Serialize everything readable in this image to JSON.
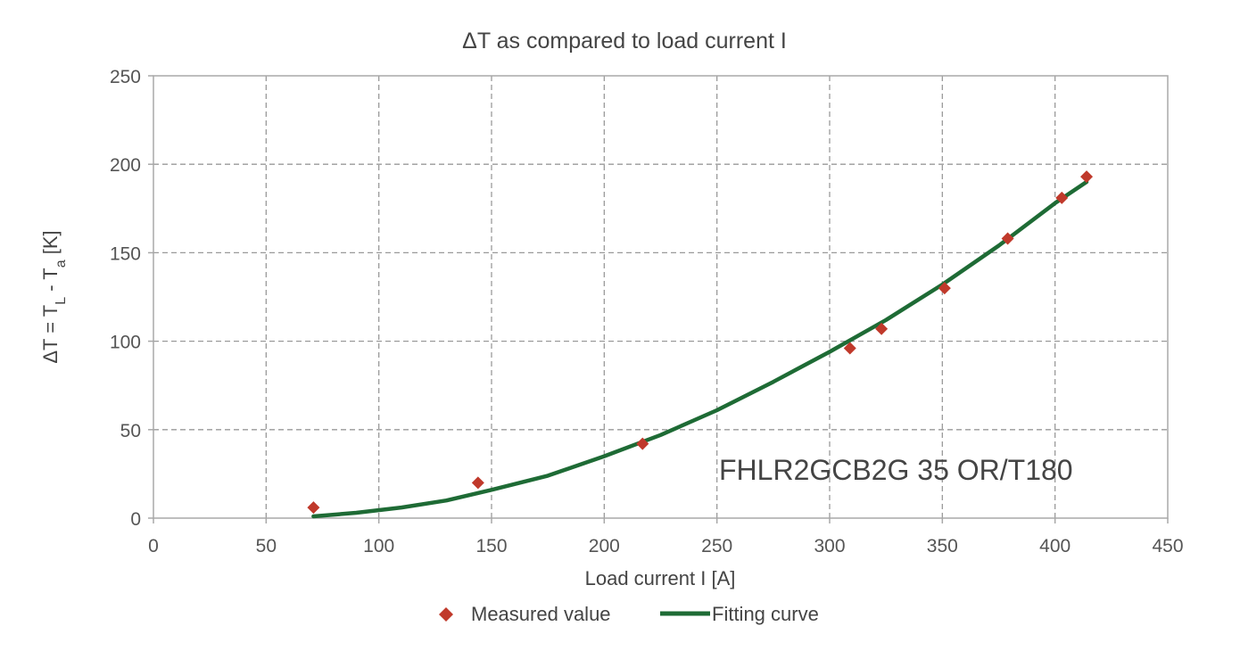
{
  "chart_data": {
    "type": "scatter",
    "title": "ΔT as compared to load current I",
    "xlabel": "Load current I [A]",
    "ylabel": {
      "main": "ΔT = T",
      "sub_L": "L",
      "mid": " - T",
      "sub_a": "a",
      "end": " [K]"
    },
    "xlim": [
      0,
      450
    ],
    "ylim": [
      0,
      250
    ],
    "x_ticks": [
      0,
      50,
      100,
      150,
      200,
      250,
      300,
      350,
      400,
      450
    ],
    "y_ticks": [
      0,
      50,
      100,
      150,
      200,
      250
    ],
    "grid": true,
    "legend_position": "bottom",
    "annotation": "FHLR2GCB2G 35 OR/T180",
    "series": [
      {
        "name": "Measured value",
        "kind": "scatter",
        "marker": "diamond",
        "color": "#c0392b",
        "points": [
          [
            71,
            6
          ],
          [
            144,
            20
          ],
          [
            217,
            42
          ],
          [
            309,
            96
          ],
          [
            323,
            107
          ],
          [
            351,
            130
          ],
          [
            379,
            158
          ],
          [
            403,
            181
          ],
          [
            414,
            193
          ]
        ]
      },
      {
        "name": "Fitting curve",
        "kind": "line",
        "color": "#1e6b35",
        "points": [
          [
            71,
            1
          ],
          [
            90,
            3
          ],
          [
            110,
            6
          ],
          [
            130,
            10
          ],
          [
            150,
            16
          ],
          [
            175,
            24
          ],
          [
            200,
            35
          ],
          [
            225,
            47
          ],
          [
            250,
            61
          ],
          [
            275,
            77
          ],
          [
            300,
            94
          ],
          [
            325,
            112
          ],
          [
            350,
            132
          ],
          [
            375,
            154
          ],
          [
            400,
            178
          ],
          [
            414,
            190
          ]
        ]
      }
    ]
  }
}
